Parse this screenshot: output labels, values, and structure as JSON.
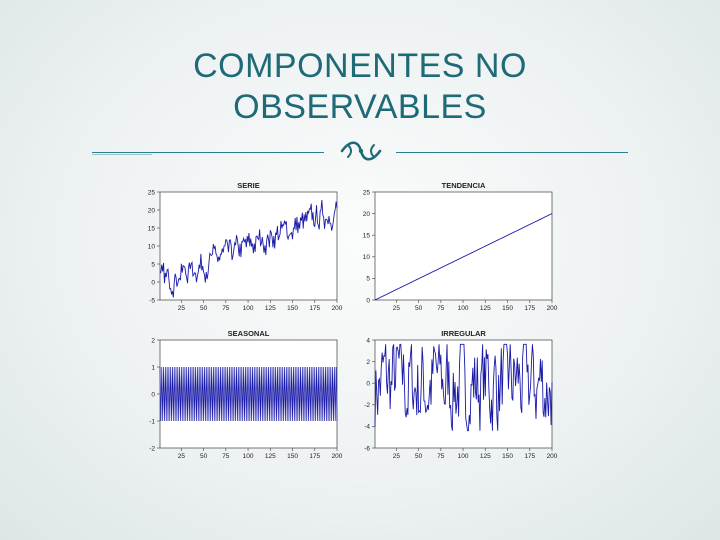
{
  "slide": {
    "title_lines": [
      "COMPONENTES NO",
      "OBSERVABLES"
    ],
    "ornament_icon": "decorative-scroll-icon",
    "accent_color": "#1e6a77"
  },
  "chart_data": [
    {
      "type": "line",
      "title": "SERIE",
      "x_ticks": [
        25,
        50,
        75,
        100,
        125,
        150,
        175,
        200
      ],
      "y_ticks": [
        -5,
        0,
        5,
        10,
        15,
        20,
        25
      ],
      "xlim": [
        1,
        200
      ],
      "ylim": [
        -5,
        25
      ],
      "series": [
        {
          "trend_start": 0,
          "trend_end": 20,
          "seasonal_amplitude": 1,
          "irregular_amplitude": 2.5
        }
      ],
      "line_color": "#1a1aa8"
    },
    {
      "type": "line",
      "title": "TENDENCIA",
      "x_ticks": [
        25,
        50,
        75,
        100,
        125,
        150,
        175,
        200
      ],
      "y_ticks": [
        0,
        5,
        10,
        15,
        20,
        25
      ],
      "xlim": [
        1,
        200
      ],
      "ylim": [
        0,
        25
      ],
      "series": [
        {
          "x": [
            1,
            200
          ],
          "y": [
            0,
            20
          ]
        }
      ],
      "line_color": "#1a1aa8"
    },
    {
      "type": "line",
      "title": "SEASONAL",
      "x_ticks": [
        25,
        50,
        75,
        100,
        125,
        150,
        175,
        200
      ],
      "y_ticks": [
        -2,
        -1,
        0,
        1,
        2
      ],
      "xlim": [
        1,
        200
      ],
      "ylim": [
        -2,
        2
      ],
      "series": [
        {
          "period": 4,
          "pattern": [
            1,
            -1,
            1,
            -1
          ]
        }
      ],
      "line_color": "#1a1aa8"
    },
    {
      "type": "line",
      "title": "IRREGULAR",
      "x_ticks": [
        25,
        50,
        75,
        100,
        125,
        150,
        175,
        200
      ],
      "y_ticks": [
        -6,
        -4,
        -2,
        0,
        2,
        4
      ],
      "xlim": [
        1,
        200
      ],
      "ylim": [
        -6,
        4
      ],
      "series": [
        {
          "noise_range": [
            -4,
            3.5
          ]
        }
      ],
      "line_color": "#1a1aa8"
    }
  ]
}
